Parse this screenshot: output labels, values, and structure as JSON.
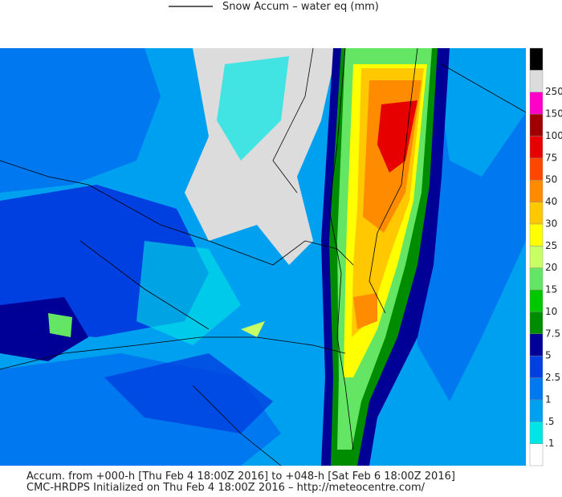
{
  "header": {
    "legend_title": "Snow Accum – water eq (mm)"
  },
  "colorbar": {
    "labels": [
      ".1",
      ".5",
      "1",
      "2.5",
      "5",
      "7.5",
      "10",
      "15",
      "20",
      "25",
      "30",
      "40",
      "50",
      "75",
      "100",
      "150",
      "250"
    ],
    "colors": [
      "#ffffff",
      "#00e6e6",
      "#00a0f0",
      "#0078f0",
      "#0040e0",
      "#000096",
      "#008c00",
      "#00c800",
      "#64e664",
      "#c8ff64",
      "#ffff00",
      "#ffc800",
      "#ff8c00",
      "#ff4600",
      "#e60000",
      "#a00000",
      "#ff00c8",
      "#dcdcdc",
      "#000000"
    ]
  },
  "footer": {
    "line1": "Accum. from +000-h [Thu Feb 4 18:00Z 2016] to +048-h [Sat Feb 6 18:00Z 2016]",
    "line2": "CMC-HRDPS Initialized on Thu Feb 4 18:00Z 2016 – http://meteocentre.com/"
  }
}
